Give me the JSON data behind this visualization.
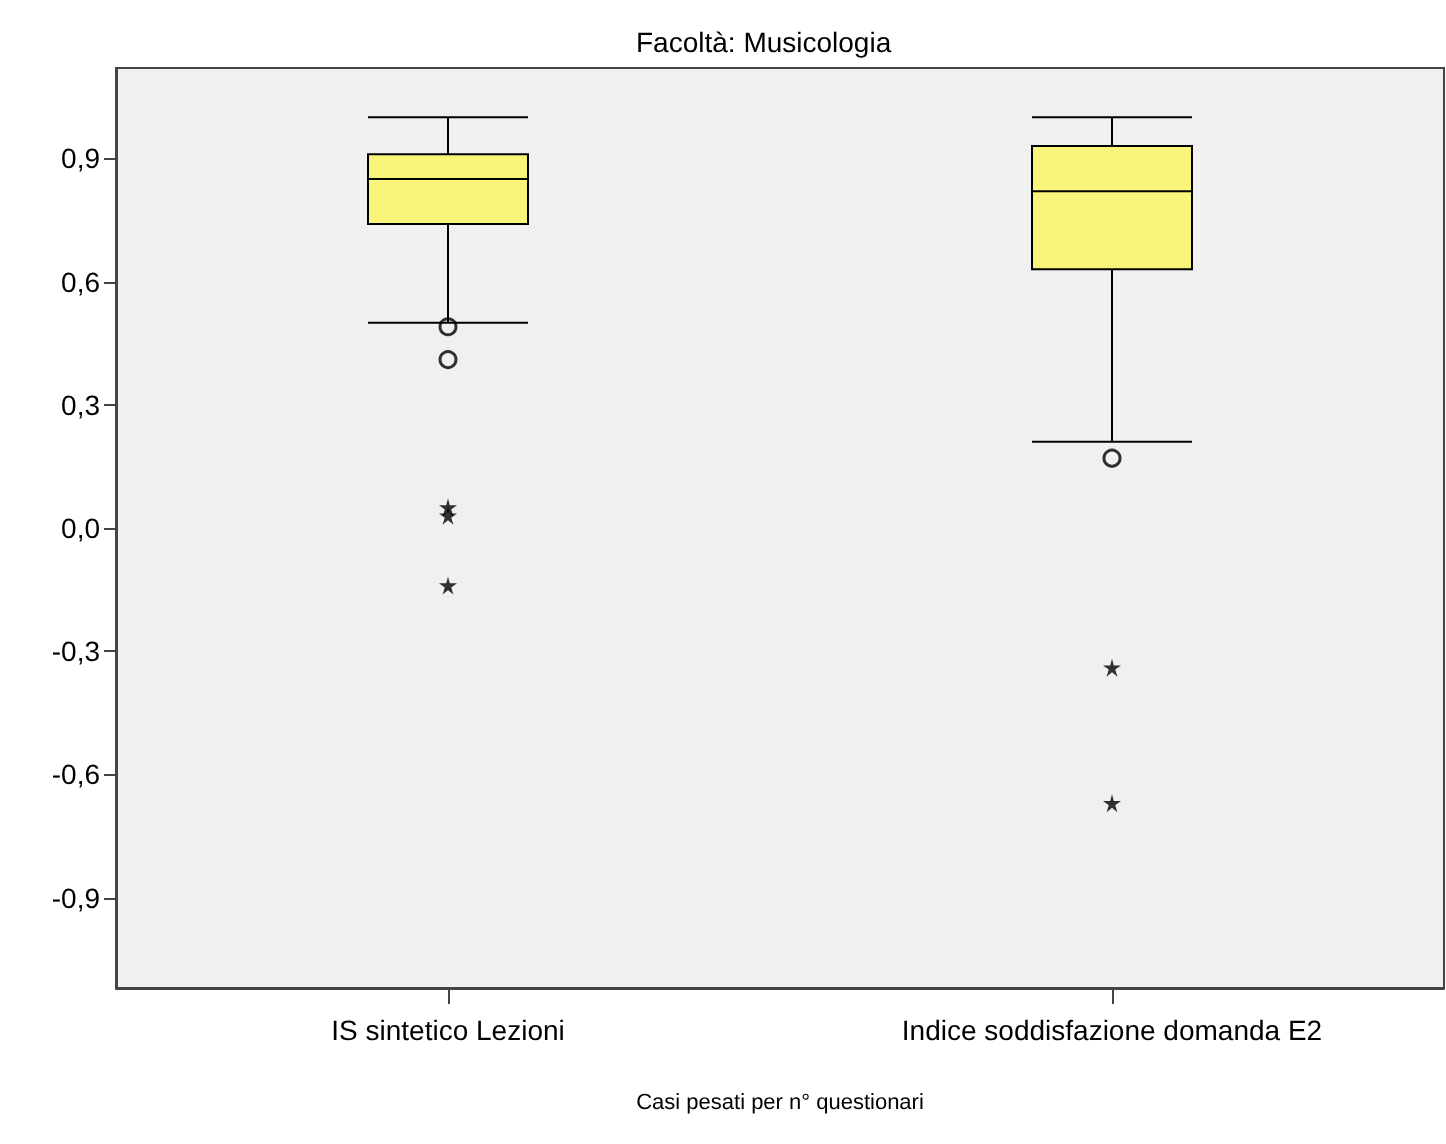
{
  "chart_data": {
    "type": "box",
    "title": "Facoltà: Musicologia",
    "xlabel": "Casi pesati per n° questionari",
    "categories": [
      "IS sintetico Lezioni",
      "Indice soddisfazione domanda E2"
    ],
    "color": "#f8f57a",
    "boxes": [
      {
        "low": 0.5,
        "q1": 0.74,
        "median": 0.85,
        "q3": 0.91,
        "high": 1.0,
        "outliers": [
          0.49,
          0.41,
          0.05,
          0.03,
          -0.14
        ]
      },
      {
        "low": 0.21,
        "q1": 0.63,
        "median": 0.82,
        "q3": 0.93,
        "high": 1.0,
        "outliers": [
          0.17,
          -0.34,
          -0.67
        ]
      }
    ],
    "ylim": [
      -1.12,
      1.12
    ],
    "yticks": [
      {
        "value": -0.9,
        "label": "-0,9"
      },
      {
        "value": -0.6,
        "label": "-0,6"
      },
      {
        "value": -0.3,
        "label": "-0,3"
      },
      {
        "value": 0,
        "label": "0,0"
      },
      {
        "value": 0.3,
        "label": "0,3"
      },
      {
        "value": 0.6,
        "label": "0,6"
      },
      {
        "value": 0.9,
        "label": "0,9"
      }
    ]
  }
}
